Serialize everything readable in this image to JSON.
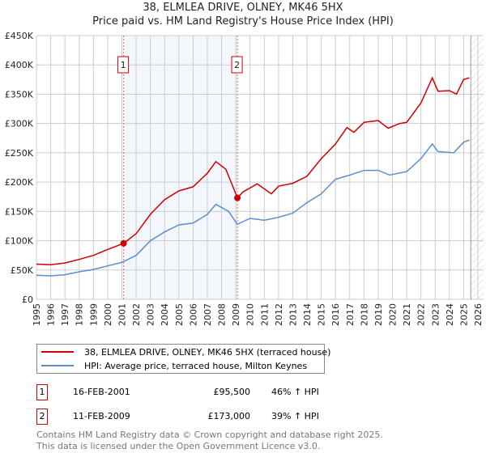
{
  "title_line1": "38, ELMLEA DRIVE, OLNEY, MK46 5HX",
  "title_line2": "Price paid vs. HM Land Registry's House Price Index (HPI)",
  "chart_data": {
    "type": "line",
    "title": "38, ELMLEA DRIVE, OLNEY, MK46 5HX — Price paid vs. HM Land Registry's House Price Index (HPI)",
    "xlim": [
      1995,
      2026
    ],
    "ylim": [
      0,
      450000
    ],
    "x_ticks": [
      "1995",
      "1996",
      "1997",
      "1998",
      "1999",
      "2000",
      "2001",
      "2002",
      "2003",
      "2004",
      "2005",
      "2006",
      "2007",
      "2008",
      "2009",
      "2010",
      "2011",
      "2012",
      "2013",
      "2014",
      "2015",
      "2016",
      "2017",
      "2018",
      "2019",
      "2020",
      "2021",
      "2022",
      "2023",
      "2024",
      "2025",
      "2026"
    ],
    "y_ticks": [
      {
        "v": 0,
        "l": "£0"
      },
      {
        "v": 50000,
        "l": "£50K"
      },
      {
        "v": 100000,
        "l": "£100K"
      },
      {
        "v": 150000,
        "l": "£150K"
      },
      {
        "v": 200000,
        "l": "£200K"
      },
      {
        "v": 250000,
        "l": "£250K"
      },
      {
        "v": 300000,
        "l": "£300K"
      },
      {
        "v": 350000,
        "l": "£350K"
      },
      {
        "v": 400000,
        "l": "£400K"
      },
      {
        "v": 450000,
        "l": "£450K"
      }
    ],
    "grid": true,
    "shaded_range": [
      2001.12,
      2009.11
    ],
    "series": [
      {
        "name": "38, ELMLEA DRIVE, OLNEY, MK46 5HX (terraced house)",
        "color": "#cc0000",
        "x": [
          1995,
          1996,
          1997,
          1998,
          1999,
          2000,
          2001.12,
          2002,
          2003,
          2004,
          2005,
          2006,
          2007,
          2007.6,
          2008.3,
          2008.8,
          2009.11,
          2009.5,
          2010.5,
          2011.5,
          2012,
          2013,
          2014,
          2015,
          2016,
          2016.8,
          2017.3,
          2018,
          2019,
          2019.7,
          2020.5,
          2021,
          2022,
          2022.8,
          2023.2,
          2024,
          2024.5,
          2025,
          2025.4
        ],
        "y": [
          60000,
          59000,
          62000,
          68000,
          75000,
          85000,
          95500,
          112000,
          145000,
          170000,
          185000,
          192000,
          215000,
          235000,
          222000,
          192000,
          173000,
          183000,
          197000,
          180000,
          193000,
          198000,
          210000,
          240000,
          265000,
          293000,
          285000,
          302000,
          305000,
          292000,
          300000,
          302000,
          335000,
          378000,
          355000,
          356000,
          350000,
          375000,
          378000
        ]
      },
      {
        "name": "HPI: Average price, terraced house, Milton Keynes",
        "color": "#5b8fd0",
        "x": [
          1995,
          1996,
          1997,
          1998,
          1999,
          2000,
          2001,
          2002,
          2003,
          2004,
          2005,
          2006,
          2007,
          2007.6,
          2008.5,
          2009.1,
          2010,
          2011,
          2012,
          2013,
          2014,
          2015,
          2016,
          2017,
          2018,
          2019,
          2019.8,
          2021,
          2022,
          2022.8,
          2023.2,
          2024.3,
          2025,
          2025.4
        ],
        "y": [
          41000,
          40000,
          42000,
          47000,
          51000,
          57000,
          63000,
          75000,
          100000,
          115000,
          127000,
          130000,
          145000,
          162000,
          150000,
          128000,
          138000,
          135000,
          140000,
          147000,
          165000,
          180000,
          205000,
          212000,
          220000,
          220000,
          212000,
          218000,
          240000,
          265000,
          252000,
          250000,
          268000,
          272000
        ]
      }
    ],
    "sales": [
      {
        "label": "1",
        "x": 2001.12,
        "y": 95500
      },
      {
        "label": "2",
        "x": 2009.11,
        "y": 173000
      }
    ]
  },
  "legend": {
    "items": [
      {
        "label": "38, ELMLEA DRIVE, OLNEY, MK46 5HX (terraced house)",
        "color": "#cc0000"
      },
      {
        "label": "HPI: Average price, terraced house, Milton Keynes",
        "color": "#5b8fd0"
      }
    ]
  },
  "transactions": [
    {
      "id": "1",
      "date": "16-FEB-2001",
      "price": "£95,500",
      "hpi": "46% ↑ HPI"
    },
    {
      "id": "2",
      "date": "11-FEB-2009",
      "price": "£173,000",
      "hpi": "39% ↑ HPI"
    }
  ],
  "footer": {
    "line1": "Contains HM Land Registry data © Crown copyright and database right 2025.",
    "line2": "This data is licensed under the Open Government Licence v3.0."
  }
}
